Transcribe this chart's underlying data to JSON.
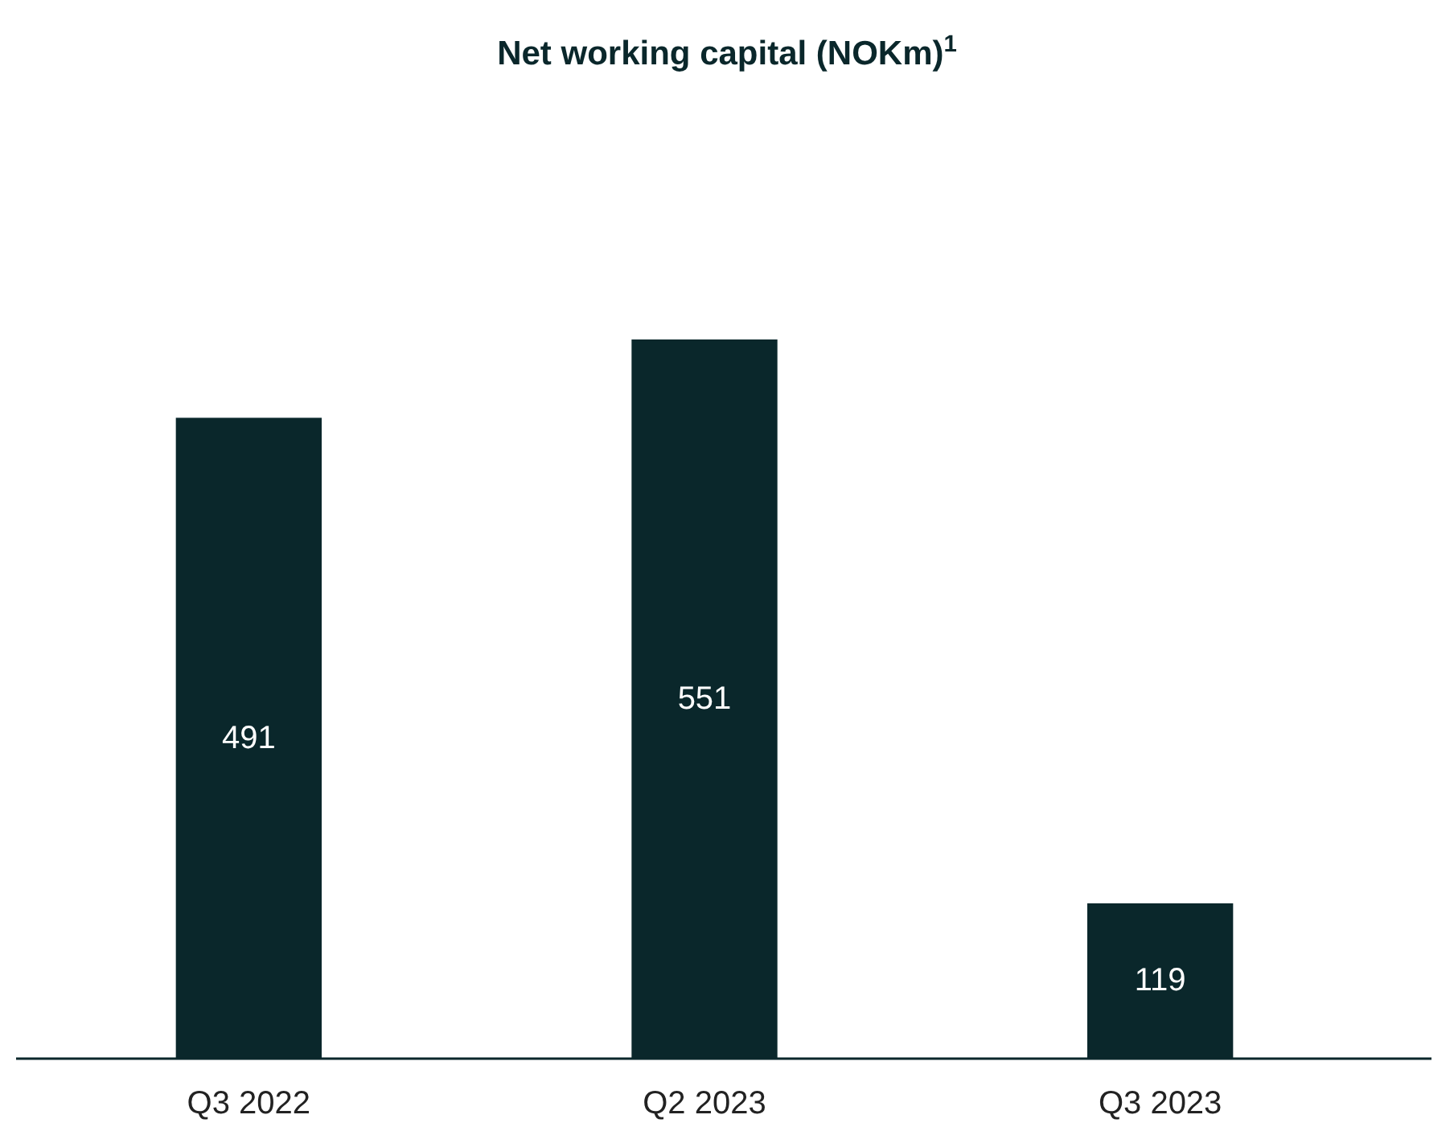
{
  "chart_data": {
    "type": "bar",
    "title": "Net working capital (NOKm)$^{1}$",
    "categories": [
      "Q3 2022",
      "Q2 2023",
      "Q3 2023"
    ],
    "values": [
      491,
      551,
      119
    ],
    "color": "#0a272b",
    "data_labels": true
  }
}
